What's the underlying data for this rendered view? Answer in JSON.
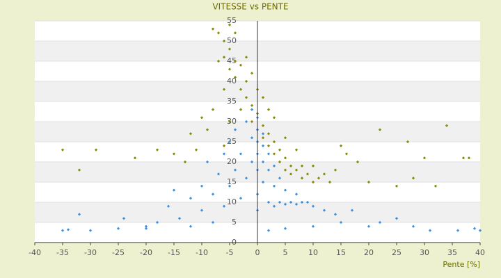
{
  "chart_data": {
    "type": "scatter",
    "title": "VITESSE vs PENTE",
    "x_label": "Pente [%]",
    "xlim": [
      -40,
      40
    ],
    "xticks": [
      -40,
      -35,
      -30,
      -25,
      -20,
      -15,
      -10,
      -5,
      0,
      5,
      10,
      15,
      20,
      25,
      30,
      35,
      40
    ],
    "ylim": [
      0,
      55
    ],
    "yticks": [
      0,
      5,
      10,
      15,
      20,
      25,
      30,
      35,
      40,
      45,
      50,
      55
    ],
    "grid": true,
    "series": [
      {
        "color": "#8a8a00",
        "x": [
          -8,
          -7,
          -6,
          -5,
          -6,
          -4,
          -5,
          -3,
          -4,
          -2,
          -3,
          -2,
          -1,
          -6,
          -7,
          -1,
          0,
          0,
          1,
          1,
          2,
          2,
          3,
          3,
          4,
          4,
          5,
          5,
          6,
          6,
          7,
          8,
          8,
          9,
          10,
          10,
          11,
          12,
          13,
          14,
          15,
          16,
          18,
          20,
          22,
          25,
          27,
          28,
          30,
          32,
          34,
          37,
          38,
          -10,
          -12,
          -15,
          -18,
          -22,
          -29,
          -32,
          -35,
          -8,
          -9,
          -5,
          -3,
          -2,
          -1,
          0,
          1,
          2,
          3,
          -4,
          -5,
          5,
          7,
          -11,
          -13,
          -6
        ],
        "values": [
          53,
          52,
          50,
          48,
          46,
          45,
          43,
          44,
          41,
          40,
          38,
          36,
          34,
          38,
          45,
          30,
          32,
          28,
          29,
          26,
          27,
          24,
          22,
          25,
          20,
          23,
          21,
          18,
          19,
          17,
          18,
          16,
          19,
          17,
          15,
          19,
          16,
          17,
          15,
          18,
          24,
          22,
          20,
          15,
          28,
          14,
          25,
          16,
          21,
          14,
          29,
          21,
          21,
          31,
          27,
          22,
          23,
          21,
          23,
          18,
          23,
          33,
          28,
          30,
          33,
          46,
          42,
          38,
          36,
          33,
          31,
          52,
          54,
          26,
          23,
          23,
          20,
          24
        ]
      },
      {
        "color": "#3d8fe0",
        "x": [
          -35,
          -34,
          -30,
          -32,
          -25,
          -24,
          -20,
          -18,
          -16,
          -15,
          -14,
          -12,
          -12,
          -10,
          -10,
          -9,
          -8,
          -8,
          -7,
          -6,
          -6,
          -5,
          -5,
          -4,
          -4,
          -3,
          -3,
          -2,
          -2,
          -1,
          -1,
          -1,
          0,
          0,
          0,
          0,
          0,
          0,
          0,
          1,
          1,
          1,
          1,
          2,
          2,
          2,
          3,
          3,
          3,
          4,
          4,
          5,
          5,
          6,
          7,
          7,
          8,
          9,
          10,
          12,
          14,
          15,
          17,
          20,
          22,
          25,
          28,
          31,
          36,
          39,
          40,
          2,
          5,
          10,
          -20
        ],
        "values": [
          3,
          3.2,
          3,
          7,
          3.5,
          6,
          3.5,
          5,
          9,
          13,
          6,
          4,
          11,
          8,
          14,
          20,
          12,
          5,
          17,
          22,
          9,
          14,
          25,
          18,
          28,
          11,
          22,
          30,
          16,
          20,
          26,
          33,
          12,
          18,
          22,
          25,
          28,
          31,
          8,
          15,
          20,
          24,
          27,
          10,
          18,
          22,
          9,
          14,
          19,
          10,
          16,
          9.5,
          13,
          10,
          9.5,
          12,
          10,
          10,
          9,
          8,
          7,
          5,
          8,
          4,
          5,
          6,
          4,
          3,
          3,
          3.5,
          3,
          3,
          3.5,
          4,
          4
        ]
      }
    ]
  }
}
